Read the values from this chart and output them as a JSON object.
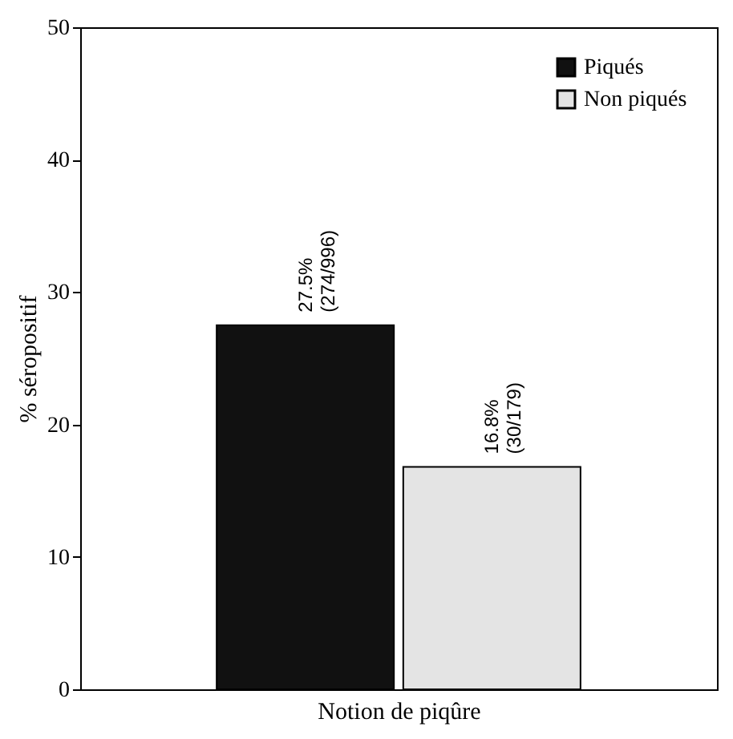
{
  "chart_data": {
    "type": "bar",
    "xlabel": "Notion de piqûre",
    "ylabel": "% séropositif",
    "categories": [
      null
    ],
    "series": [
      {
        "name": "Piqués",
        "color": "#111111",
        "values": [
          27.5
        ],
        "value_labels": [
          "27.5%\n(274/996)"
        ]
      },
      {
        "name": "Non piqués",
        "color": "#e4e4e4",
        "values": [
          16.8
        ],
        "value_labels": [
          "16.8%\n(30/179)"
        ]
      }
    ],
    "ylim": [
      0,
      50
    ],
    "yticks": [
      0,
      10,
      20,
      30,
      40,
      50
    ],
    "grid": false,
    "legend": "top right"
  }
}
